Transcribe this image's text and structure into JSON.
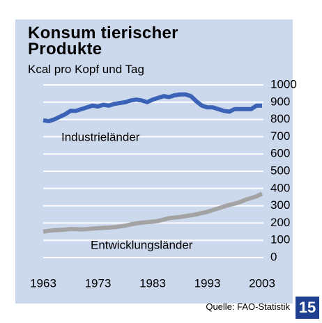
{
  "chart_data": {
    "type": "line",
    "title": "Konsum tierischer Produkte",
    "subtitle": "Kcal pro Kopf und Tag",
    "source": "Quelle: FAO-Statistik",
    "page_number": "15",
    "x": [
      1963,
      1964,
      1965,
      1966,
      1967,
      1968,
      1969,
      1970,
      1971,
      1972,
      1973,
      1974,
      1975,
      1976,
      1977,
      1978,
      1979,
      1980,
      1981,
      1982,
      1983,
      1984,
      1985,
      1986,
      1987,
      1988,
      1989,
      1990,
      1991,
      1992,
      1993,
      1994,
      1995,
      1996,
      1997,
      1998,
      1999,
      2000,
      2001,
      2002,
      2003
    ],
    "series": [
      {
        "name": "Industrieländer",
        "color": "#3a62b6",
        "values": [
          795,
          790,
          800,
          815,
          830,
          850,
          850,
          860,
          870,
          880,
          875,
          885,
          880,
          890,
          895,
          900,
          910,
          915,
          910,
          900,
          915,
          925,
          935,
          930,
          940,
          945,
          945,
          935,
          905,
          880,
          870,
          870,
          860,
          850,
          845,
          860,
          860,
          860,
          860,
          880,
          880
        ]
      },
      {
        "name": "Entwicklungsländer",
        "color": "#a3a3a3",
        "values": [
          150,
          155,
          158,
          160,
          162,
          165,
          165,
          163,
          165,
          168,
          170,
          172,
          174,
          176,
          180,
          185,
          192,
          198,
          202,
          205,
          208,
          212,
          220,
          228,
          232,
          235,
          240,
          245,
          250,
          258,
          265,
          275,
          285,
          295,
          305,
          312,
          322,
          335,
          345,
          355,
          370
        ]
      }
    ],
    "xlim": [
      1963,
      2003
    ],
    "xticks": [
      1963,
      1973,
      1983,
      1993,
      2003
    ],
    "ylim": [
      0,
      1000
    ],
    "yticks": [
      0,
      100,
      200,
      300,
      400,
      500,
      600,
      700,
      800,
      900,
      1000
    ],
    "grid": true
  }
}
